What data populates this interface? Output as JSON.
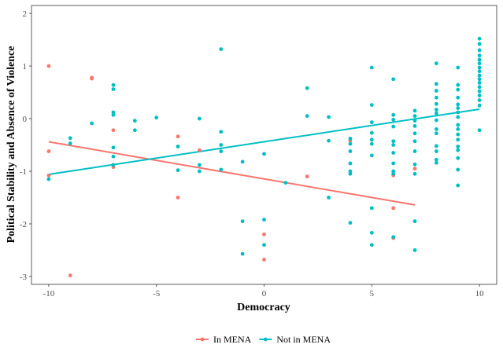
{
  "chart_data": {
    "type": "scatter",
    "xlabel": "Democracy",
    "ylabel": "Political Stability and Absence of Violence",
    "xlim": [
      -10.8,
      10.8
    ],
    "ylim": [
      -3.15,
      2.15
    ],
    "xticks": [
      -10,
      -5,
      0,
      5,
      10
    ],
    "yticks": [
      -3,
      -2,
      -1,
      0,
      1,
      2
    ],
    "grid": false,
    "legend_position": "bottom",
    "series": [
      {
        "name": "In MENA",
        "color": "#F8766D",
        "points": [
          [
            -10,
            1.0
          ],
          [
            -10,
            -0.62
          ],
          [
            -10,
            -1.08
          ],
          [
            -9,
            -2.98
          ],
          [
            -8,
            0.78
          ],
          [
            -8,
            0.76
          ],
          [
            -7,
            -0.22
          ],
          [
            -7,
            -0.92
          ],
          [
            -4,
            -0.34
          ],
          [
            -4,
            -1.5
          ],
          [
            -3,
            -0.6
          ],
          [
            0,
            -2.2
          ],
          [
            0,
            -2.68
          ],
          [
            2,
            -1.1
          ],
          [
            4,
            -0.42
          ],
          [
            6,
            -1.08
          ],
          [
            6,
            -1.7
          ],
          [
            6,
            -2.27
          ],
          [
            7,
            -0.95
          ]
        ],
        "trend": {
          "x": [
            -10,
            7
          ],
          "y": [
            -0.44,
            -1.64
          ]
        }
      },
      {
        "name": "Not in MENA",
        "color": "#00BFC4",
        "points": [
          [
            -10,
            -1.15
          ],
          [
            -9,
            -0.37
          ],
          [
            -9,
            -0.47
          ],
          [
            -8,
            -0.09
          ],
          [
            -7,
            0.64
          ],
          [
            -7,
            0.56
          ],
          [
            -7,
            0.12
          ],
          [
            -7,
            0.07
          ],
          [
            -7,
            -0.55
          ],
          [
            -7,
            -0.72
          ],
          [
            -7,
            -0.88
          ],
          [
            -6,
            -0.04
          ],
          [
            -6,
            -0.22
          ],
          [
            -5,
            0.02
          ],
          [
            -4,
            -0.53
          ],
          [
            -4,
            -0.98
          ],
          [
            -3,
            0.0
          ],
          [
            -3,
            -0.88
          ],
          [
            -3,
            -1.0
          ],
          [
            -2,
            1.32
          ],
          [
            -2,
            -0.25
          ],
          [
            -2,
            -0.5
          ],
          [
            -2,
            -0.62
          ],
          [
            -2,
            -0.97
          ],
          [
            -1,
            -0.82
          ],
          [
            -1,
            -1.95
          ],
          [
            -1,
            -2.57
          ],
          [
            0,
            -0.67
          ],
          [
            0,
            -1.92
          ],
          [
            0,
            -2.4
          ],
          [
            1,
            -1.22
          ],
          [
            2,
            0.58
          ],
          [
            2,
            0.05
          ],
          [
            3,
            0.03
          ],
          [
            3,
            -0.42
          ],
          [
            3,
            -1.5
          ],
          [
            4,
            -0.38
          ],
          [
            4,
            -0.48
          ],
          [
            4,
            -0.62
          ],
          [
            4,
            -0.85
          ],
          [
            4,
            -1.0
          ],
          [
            4,
            -1.05
          ],
          [
            4,
            -1.98
          ],
          [
            5,
            0.97
          ],
          [
            5,
            0.26
          ],
          [
            5,
            -0.07
          ],
          [
            5,
            -0.27
          ],
          [
            5,
            -0.4
          ],
          [
            5,
            -0.48
          ],
          [
            5,
            -0.7
          ],
          [
            5,
            -1.7
          ],
          [
            5,
            -2.17
          ],
          [
            5,
            -2.4
          ],
          [
            6,
            0.75
          ],
          [
            6,
            0.07
          ],
          [
            6,
            -0.02
          ],
          [
            6,
            -0.15
          ],
          [
            6,
            -0.43
          ],
          [
            6,
            -0.5
          ],
          [
            6,
            -0.65
          ],
          [
            6,
            -0.85
          ],
          [
            6,
            -1.0
          ],
          [
            6,
            -1.05
          ],
          [
            6,
            -2.25
          ],
          [
            7,
            0.15
          ],
          [
            7,
            0.05
          ],
          [
            7,
            -0.04
          ],
          [
            7,
            -0.14
          ],
          [
            7,
            -0.28
          ],
          [
            7,
            -0.43
          ],
          [
            7,
            -0.62
          ],
          [
            7,
            -0.87
          ],
          [
            7,
            -1.05
          ],
          [
            7,
            -1.95
          ],
          [
            7,
            -2.5
          ],
          [
            8,
            1.05
          ],
          [
            8,
            0.66
          ],
          [
            8,
            0.53
          ],
          [
            8,
            0.4
          ],
          [
            8,
            0.28
          ],
          [
            8,
            0.17
          ],
          [
            8,
            0.1
          ],
          [
            8,
            -0.03
          ],
          [
            8,
            -0.2
          ],
          [
            8,
            -0.28
          ],
          [
            8,
            -0.52
          ],
          [
            8,
            -0.62
          ],
          [
            8,
            -0.78
          ],
          [
            8,
            -0.84
          ],
          [
            9,
            0.97
          ],
          [
            9,
            0.64
          ],
          [
            9,
            0.55
          ],
          [
            9,
            0.4
          ],
          [
            9,
            0.27
          ],
          [
            9,
            0.2
          ],
          [
            9,
            0.12
          ],
          [
            9,
            0.03
          ],
          [
            9,
            -0.12
          ],
          [
            9,
            -0.2
          ],
          [
            9,
            -0.3
          ],
          [
            9,
            -0.4
          ],
          [
            9,
            -0.53
          ],
          [
            9,
            -0.6
          ],
          [
            9,
            -0.75
          ],
          [
            9,
            -0.97
          ],
          [
            9,
            -1.27
          ],
          [
            10,
            1.52
          ],
          [
            10,
            1.42
          ],
          [
            10,
            1.3
          ],
          [
            10,
            1.2
          ],
          [
            10,
            1.12
          ],
          [
            10,
            1.05
          ],
          [
            10,
            0.97
          ],
          [
            10,
            0.9
          ],
          [
            10,
            0.82
          ],
          [
            10,
            0.75
          ],
          [
            10,
            0.68
          ],
          [
            10,
            0.6
          ],
          [
            10,
            0.52
          ],
          [
            10,
            0.44
          ],
          [
            10,
            0.35
          ],
          [
            10,
            0.25
          ],
          [
            10,
            -0.22
          ]
        ],
        "trend": {
          "x": [
            -10,
            10
          ],
          "y": [
            -1.06,
            0.18
          ]
        }
      }
    ]
  }
}
